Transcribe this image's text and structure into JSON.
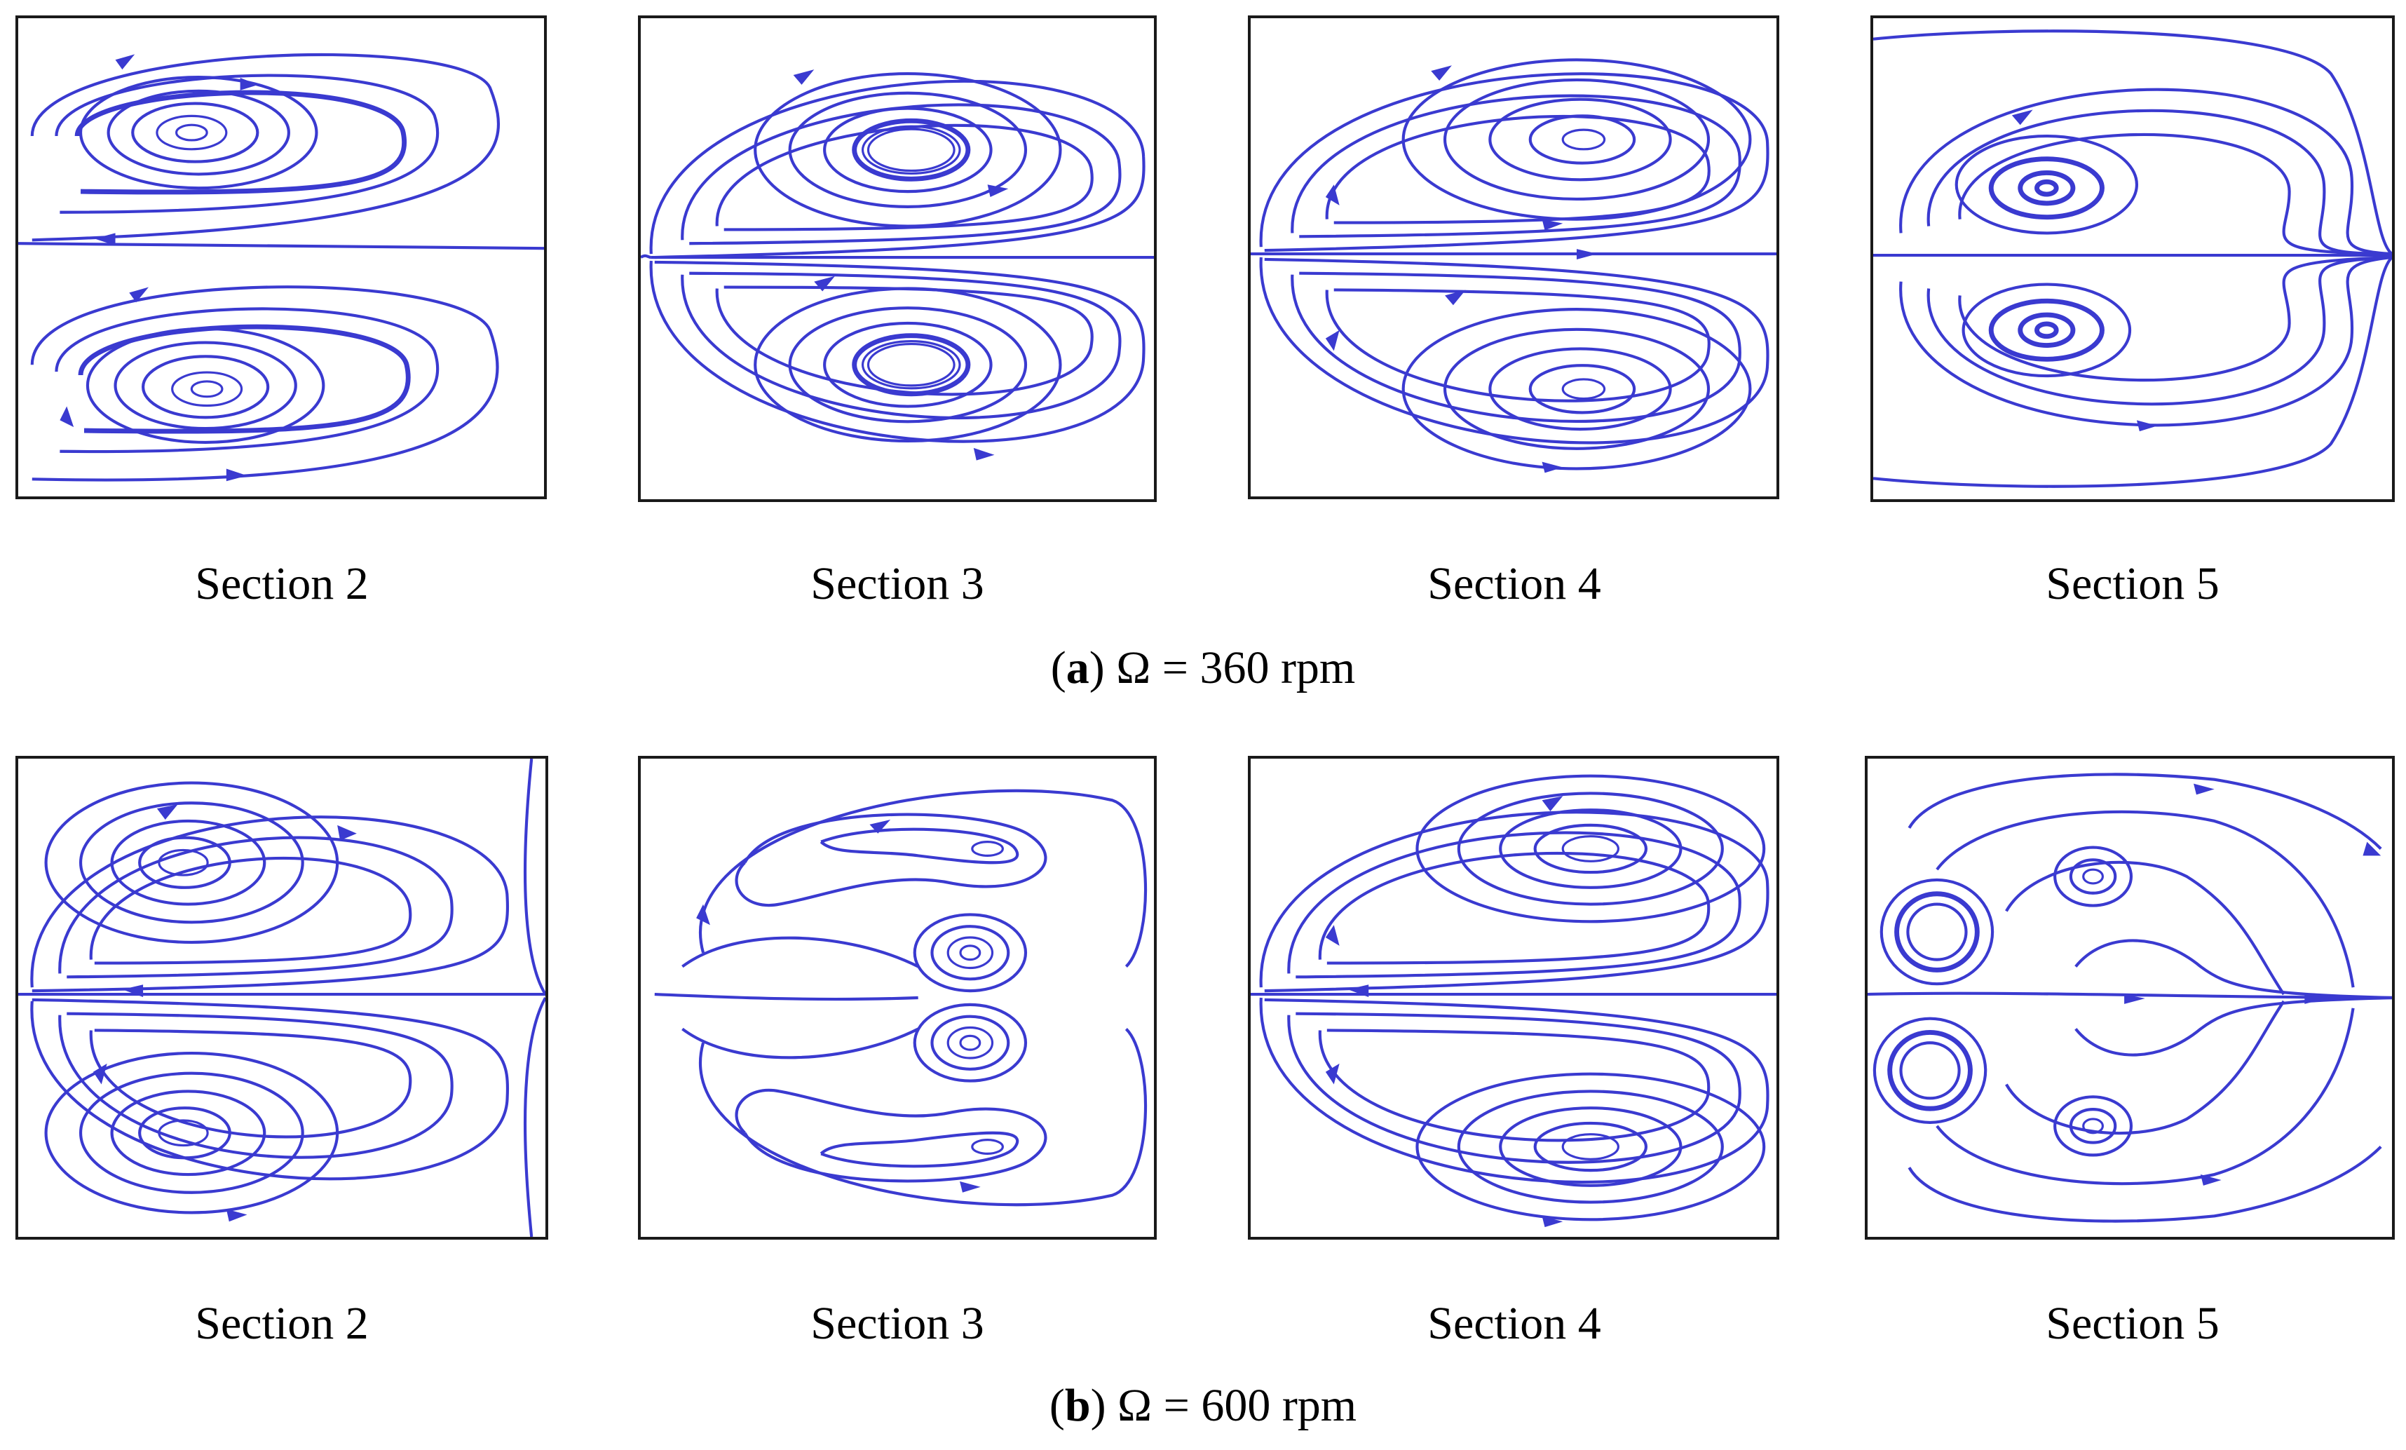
{
  "figure": {
    "rows": [
      {
        "id": "a",
        "caption_letter": "a",
        "caption_text": "Ω = 360 rpm",
        "panels": [
          {
            "label": "Section 2",
            "pattern": "c-shaped-vortex-pair"
          },
          {
            "label": "Section 3",
            "pattern": "vortex-pair-large-cores"
          },
          {
            "label": "Section 4",
            "pattern": "vortex-pair"
          },
          {
            "label": "Section 5",
            "pattern": "small-vortex-pair-left"
          }
        ]
      },
      {
        "id": "b",
        "caption_letter": "b",
        "caption_text": "Ω = 600 rpm",
        "panels": [
          {
            "label": "Section 2",
            "pattern": "c-shaped-vortex-pair"
          },
          {
            "label": "Section 3",
            "pattern": "four-vortex"
          },
          {
            "label": "Section 4",
            "pattern": "vortex-pair"
          },
          {
            "label": "Section 5",
            "pattern": "four-vortex-saddle"
          }
        ]
      }
    ],
    "colors": {
      "streamline": "#3a3ad0",
      "frame": "#1a1a1a",
      "background": "#ffffff"
    }
  }
}
